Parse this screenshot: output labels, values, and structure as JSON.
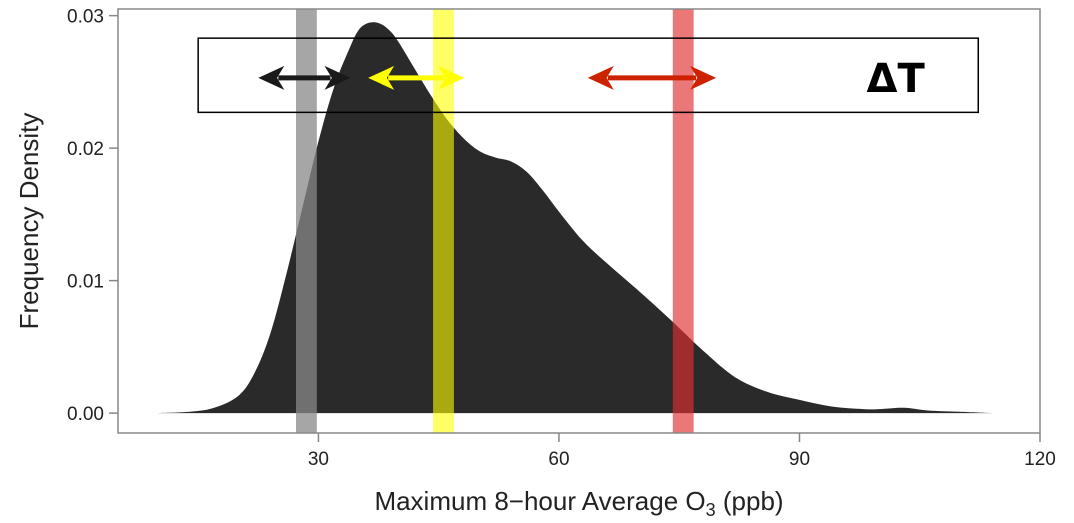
{
  "chart_data": {
    "type": "area",
    "title": "",
    "xlabel": "Maximum 8−hour Average O",
    "xlabel_subscript": "3",
    "xlabel_suffix": " (ppb)",
    "ylabel": "Frequency Density",
    "xlim": [
      5,
      120
    ],
    "ylim": [
      -0.0015,
      0.0305
    ],
    "x_ticks": [
      30,
      60,
      90,
      120
    ],
    "x_tick_labels": [
      "30",
      "60",
      "90",
      "120"
    ],
    "y_ticks": [
      0.0,
      0.01,
      0.02,
      0.03
    ],
    "y_tick_labels": [
      "0.00",
      "0.01",
      "0.02",
      "0.03"
    ],
    "grid": false,
    "series": [
      {
        "fill": "#2a2a2a",
        "x": [
          10,
          14,
          17,
          20,
          22,
          24,
          26,
          28,
          30,
          32,
          34,
          35,
          36,
          37,
          38,
          39,
          40,
          42,
          44,
          46,
          48,
          50,
          52,
          54,
          56,
          58,
          60,
          63,
          66,
          70,
          74,
          78,
          82,
          86,
          90,
          94,
          98,
          100,
          103,
          106,
          110,
          114
        ],
        "values": [
          0.0,
          0.0001,
          0.0004,
          0.0013,
          0.003,
          0.006,
          0.0105,
          0.0155,
          0.0205,
          0.0247,
          0.0277,
          0.0289,
          0.0294,
          0.0295,
          0.0293,
          0.0288,
          0.028,
          0.026,
          0.024,
          0.0222,
          0.0208,
          0.0198,
          0.0193,
          0.019,
          0.0182,
          0.0168,
          0.0152,
          0.013,
          0.0113,
          0.0092,
          0.007,
          0.0047,
          0.0027,
          0.0016,
          0.001,
          0.0005,
          0.0003,
          0.0003,
          0.0004,
          0.0002,
          0.0001,
          0.0
        ]
      }
    ],
    "bands": [
      {
        "x_min": 27.2,
        "x_max": 29.8,
        "color": "#888888",
        "opacity": 0.75
      },
      {
        "x_min": 44.3,
        "x_max": 46.9,
        "color": "#ffff00",
        "opacity": 0.6
      },
      {
        "x_min": 74.2,
        "x_max": 76.8,
        "color": "#e03030",
        "opacity": 0.65
      }
    ],
    "arrows": [
      {
        "x_start": 22.5,
        "x_end": 34.0,
        "y": 0.0253,
        "color": "#1a1a1a"
      },
      {
        "x_start": 36.2,
        "x_end": 48.2,
        "y": 0.0253,
        "color": "#ffff00"
      },
      {
        "x_start": 63.6,
        "x_end": 79.6,
        "y": 0.0253,
        "color": "#cc2200"
      }
    ],
    "annotation_box": {
      "x_min": 15.0,
      "x_max": 112.3,
      "y_min": 0.0227,
      "y_max": 0.0283
    },
    "annotation": {
      "text": "ΔT",
      "x": 102.0,
      "y": 0.0253
    }
  }
}
